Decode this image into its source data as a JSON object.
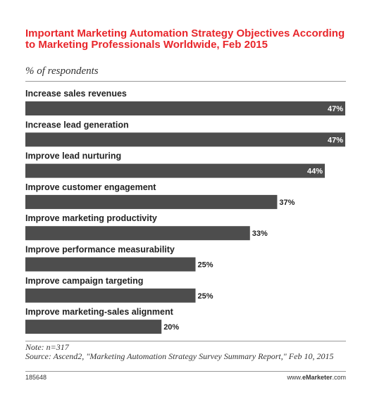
{
  "chart_data": {
    "type": "bar",
    "orientation": "horizontal",
    "title": "Important Marketing Automation Strategy Objectives According to Marketing Professionals Worldwide, Feb 2015",
    "subtitle": "% of respondents",
    "categories": [
      "Increase sales revenues",
      "Increase lead generation",
      "Improve lead nurturing",
      "Improve customer engagement",
      "Improve marketing productivity",
      "Improve performance measurability",
      "Improve campaign targeting",
      "Improve marketing-sales alignment"
    ],
    "values": [
      47,
      47,
      44,
      37,
      33,
      25,
      25,
      20
    ],
    "value_labels": [
      "47%",
      "47%",
      "44%",
      "37%",
      "33%",
      "25%",
      "25%",
      "20%"
    ],
    "xlim": [
      0,
      47
    ],
    "bar_color": "#4d4d4d",
    "title_color": "#e8262b",
    "grid": false,
    "legend": "none"
  },
  "footer": {
    "note": "Note: n=317",
    "source": "Source: Ascend2, \"Marketing Automation Strategy Survey Summary Report,\" Feb 10, 2015",
    "chart_id": "185648",
    "brand_prefix": "www.",
    "brand_bold": "eMarketer",
    "brand_suffix": ".com"
  }
}
